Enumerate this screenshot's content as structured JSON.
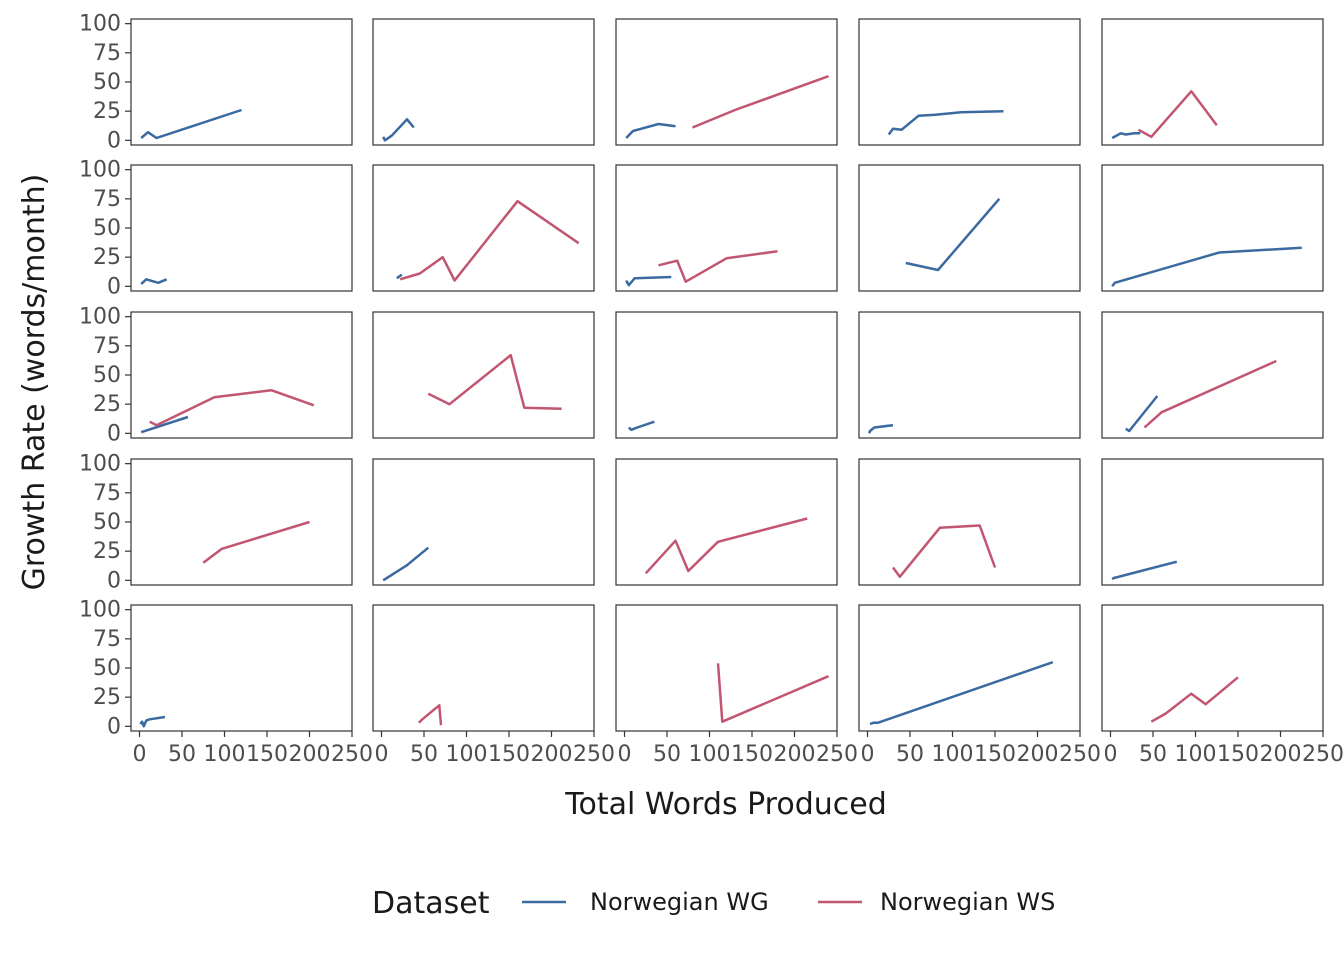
{
  "chart_data": {
    "type": "line",
    "xlabel": "Total Words Produced",
    "ylabel": "Growth Rate (words/month)",
    "xlim": [
      -10,
      250
    ],
    "ylim": [
      -4,
      104
    ],
    "x_ticks": [
      0,
      50,
      100,
      150,
      200,
      250
    ],
    "x_tick_labels": [
      "0",
      "50",
      "100",
      "150",
      "200",
      "250"
    ],
    "y_ticks": [
      0,
      25,
      50,
      75,
      100
    ],
    "y_tick_labels": [
      "0",
      "25",
      "50",
      "75",
      "100"
    ],
    "grid": false,
    "legend": {
      "title": "Dataset",
      "placement": "bottom",
      "entries": [
        {
          "name": "Norwegian WG",
          "color": "#3b6aa0"
        },
        {
          "name": "Norwegian WS",
          "color": "#c25671"
        }
      ]
    },
    "layout": {
      "rows": 5,
      "cols": 5
    },
    "panels": [
      {
        "series": [
          {
            "name": "Norwegian WG",
            "x": [
              2,
              10,
              20,
              120
            ],
            "y": [
              2,
              7,
              2,
              26
            ]
          }
        ]
      },
      {
        "series": [
          {
            "name": "Norwegian WG",
            "x": [
              2,
              4,
              12,
              30,
              38
            ],
            "y": [
              3,
              0,
              4,
              18,
              11
            ]
          }
        ]
      },
      {
        "series": [
          {
            "name": "Norwegian WG",
            "x": [
              2,
              10,
              40,
              60
            ],
            "y": [
              2,
              8,
              14,
              12
            ]
          },
          {
            "name": "Norwegian WS",
            "x": [
              80,
              130,
              240
            ],
            "y": [
              11,
              26,
              55
            ]
          }
        ]
      },
      {
        "series": [
          {
            "name": "Norwegian WG",
            "x": [
              25,
              30,
              40,
              60,
              80,
              110,
              160
            ],
            "y": [
              5,
              10,
              9,
              21,
              22,
              24,
              25
            ]
          }
        ]
      },
      {
        "series": [
          {
            "name": "Norwegian WG",
            "x": [
              2,
              12,
              18,
              28,
              35
            ],
            "y": [
              2,
              6,
              5,
              6,
              6
            ]
          },
          {
            "name": "Norwegian WS",
            "x": [
              33,
              48,
              95,
              125
            ],
            "y": [
              9,
              3,
              42,
              13
            ]
          }
        ]
      },
      {
        "series": [
          {
            "name": "Norwegian WG",
            "x": [
              2,
              8,
              22,
              32
            ],
            "y": [
              2,
              6,
              3,
              6
            ]
          }
        ]
      },
      {
        "series": [
          {
            "name": "Norwegian WG",
            "x": [
              18,
              24
            ],
            "y": [
              7,
              10
            ]
          },
          {
            "name": "Norwegian WS",
            "x": [
              22,
              45,
              72,
              86,
              160,
              232
            ],
            "y": [
              6,
              11,
              25,
              5,
              73,
              37
            ]
          }
        ]
      },
      {
        "series": [
          {
            "name": "Norwegian WG",
            "x": [
              2,
              5,
              12,
              55
            ],
            "y": [
              5,
              1,
              7,
              8
            ]
          },
          {
            "name": "Norwegian WS",
            "x": [
              40,
              62,
              72,
              120,
              180
            ],
            "y": [
              18,
              22,
              4,
              24,
              30
            ]
          }
        ]
      },
      {
        "series": [
          {
            "name": "Norwegian WG",
            "x": [
              45,
              83,
              155
            ],
            "y": [
              20,
              14,
              75
            ]
          }
        ]
      },
      {
        "series": [
          {
            "name": "Norwegian WG",
            "x": [
              2,
              5,
              128,
              225
            ],
            "y": [
              0,
              3,
              29,
              33
            ]
          }
        ]
      },
      {
        "series": [
          {
            "name": "Norwegian WG",
            "x": [
              2,
              57
            ],
            "y": [
              1,
              14
            ]
          },
          {
            "name": "Norwegian WS",
            "x": [
              12,
              20,
              88,
              155,
              205
            ],
            "y": [
              10,
              7,
              31,
              37,
              24
            ]
          }
        ]
      },
      {
        "series": [
          {
            "name": "Norwegian WS",
            "x": [
              55,
              80,
              152,
              168,
              212
            ],
            "y": [
              34,
              25,
              67,
              22,
              21
            ]
          }
        ]
      },
      {
        "series": [
          {
            "name": "Norwegian WG",
            "x": [
              5,
              8,
              15,
              35
            ],
            "y": [
              5,
              3,
              5,
              10
            ]
          }
        ]
      },
      {
        "series": [
          {
            "name": "Norwegian WG",
            "x": [
              2,
              3,
              8,
              30
            ],
            "y": [
              0,
              2,
              5,
              7
            ]
          }
        ]
      },
      {
        "series": [
          {
            "name": "Norwegian WG",
            "x": [
              18,
              22,
              55
            ],
            "y": [
              4,
              2,
              32
            ]
          },
          {
            "name": "Norwegian WS",
            "x": [
              40,
              60,
              195
            ],
            "y": [
              5,
              18,
              62
            ]
          }
        ]
      },
      {
        "series": [
          {
            "name": "Norwegian WS",
            "x": [
              75,
              97,
              200
            ],
            "y": [
              15,
              27,
              50
            ]
          }
        ]
      },
      {
        "series": [
          {
            "name": "Norwegian WG",
            "x": [
              2,
              30,
              55
            ],
            "y": [
              0,
              13,
              28
            ]
          }
        ]
      },
      {
        "series": [
          {
            "name": "Norwegian WS",
            "x": [
              25,
              60,
              75,
              110,
              215
            ],
            "y": [
              6,
              34,
              8,
              33,
              53
            ]
          }
        ]
      },
      {
        "series": [
          {
            "name": "Norwegian WS",
            "x": [
              30,
              38,
              85,
              132,
              150
            ],
            "y": [
              11,
              3,
              45,
              47,
              11
            ]
          }
        ]
      },
      {
        "series": [
          {
            "name": "Norwegian WG",
            "x": [
              2,
              4,
              78
            ],
            "y": [
              1,
              2,
              16
            ]
          }
        ]
      },
      {
        "series": [
          {
            "name": "Norwegian WG",
            "x": [
              1,
              3,
              5,
              8,
              12,
              30
            ],
            "y": [
              2,
              4,
              0,
              5,
              6,
              8
            ]
          }
        ]
      },
      {
        "series": [
          {
            "name": "Norwegian WS",
            "x": [
              44,
              48,
              68,
              70
            ],
            "y": [
              3,
              6,
              18,
              1
            ]
          }
        ]
      },
      {
        "series": [
          {
            "name": "Norwegian WS",
            "x": [
              110,
              115,
              240
            ],
            "y": [
              54,
              4,
              43
            ]
          }
        ]
      },
      {
        "series": [
          {
            "name": "Norwegian WG",
            "x": [
              3,
              7,
              12,
              218
            ],
            "y": [
              2,
              3,
              3,
              55
            ]
          }
        ]
      },
      {
        "series": [
          {
            "name": "Norwegian WS",
            "x": [
              48,
              65,
              95,
              112,
              150
            ],
            "y": [
              4,
              11,
              28,
              19,
              42
            ]
          }
        ]
      }
    ]
  }
}
